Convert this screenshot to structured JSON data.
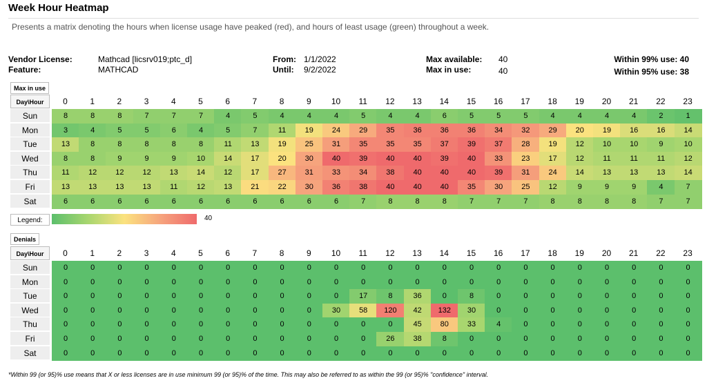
{
  "header": {
    "title": "Week Hour Heatmap",
    "subtitle": "Presents a matrix denoting the hours when license usage have peaked (red), and hours of least usage (green) throughout a week."
  },
  "info": {
    "vendor_label": "Vendor License:",
    "vendor_value": "Mathcad [licsrv019;ptc_d]",
    "feature_label": "Feature:",
    "feature_value": "MATHCAD",
    "from_label": "From:",
    "from_value": "1/1/2022",
    "until_label": "Until:",
    "until_value": "9/2/2022",
    "max_avail_label": "Max available:",
    "max_avail_value": "40",
    "max_use_label": "Max in use:",
    "max_use_value": "40",
    "within99": "Within 99% use: 40",
    "within95": "Within 95% use: 38"
  },
  "legend": {
    "label": "Legend:",
    "max": "40"
  },
  "footnote": "*Within 99 (or 95)% use means that  X or less licenses are in use minimum 99 (or 95)% of the time. This may also be referred to as within the 99 (or 95)% \"confidence\" interval.",
  "chart_data": [
    {
      "type": "heatmap",
      "title": "Max in use",
      "corner_label": "Day\\Hour",
      "x": [
        "0",
        "1",
        "2",
        "3",
        "4",
        "5",
        "6",
        "7",
        "8",
        "9",
        "10",
        "11",
        "12",
        "13",
        "14",
        "15",
        "16",
        "17",
        "18",
        "19",
        "20",
        "21",
        "22",
        "23"
      ],
      "y": [
        "Sun",
        "Mon",
        "Tue",
        "Wed",
        "Thu",
        "Fri",
        "Sat"
      ],
      "values": [
        [
          8,
          8,
          8,
          7,
          7,
          7,
          4,
          5,
          4,
          4,
          4,
          5,
          4,
          4,
          6,
          5,
          5,
          5,
          4,
          4,
          4,
          4,
          2,
          1
        ],
        [
          3,
          4,
          5,
          5,
          6,
          4,
          5,
          7,
          11,
          19,
          24,
          29,
          35,
          36,
          36,
          36,
          34,
          32,
          29,
          20,
          19,
          16,
          16,
          14
        ],
        [
          13,
          8,
          8,
          8,
          8,
          8,
          11,
          13,
          19,
          25,
          31,
          35,
          35,
          35,
          37,
          39,
          37,
          28,
          19,
          12,
          10,
          10,
          9,
          10
        ],
        [
          8,
          8,
          9,
          9,
          9,
          10,
          14,
          17,
          20,
          30,
          40,
          39,
          40,
          40,
          39,
          40,
          33,
          23,
          17,
          12,
          11,
          11,
          11,
          12
        ],
        [
          11,
          12,
          12,
          12,
          13,
          14,
          12,
          17,
          27,
          31,
          33,
          34,
          38,
          40,
          40,
          40,
          39,
          31,
          24,
          14,
          13,
          13,
          13,
          14
        ],
        [
          13,
          13,
          13,
          13,
          11,
          12,
          13,
          21,
          22,
          30,
          36,
          38,
          40,
          40,
          40,
          35,
          30,
          25,
          12,
          9,
          9,
          9,
          4,
          7
        ],
        [
          6,
          6,
          6,
          6,
          6,
          6,
          6,
          6,
          6,
          6,
          6,
          7,
          8,
          8,
          8,
          7,
          7,
          7,
          8,
          8,
          8,
          8,
          7,
          7
        ]
      ],
      "scale_max": 40
    },
    {
      "type": "heatmap",
      "title": "Denials",
      "corner_label": "Day\\Hour",
      "x": [
        "0",
        "1",
        "2",
        "3",
        "4",
        "5",
        "6",
        "7",
        "8",
        "9",
        "10",
        "11",
        "12",
        "13",
        "14",
        "15",
        "16",
        "17",
        "18",
        "19",
        "20",
        "21",
        "22",
        "23"
      ],
      "y": [
        "Sun",
        "Mon",
        "Tue",
        "Wed",
        "Thu",
        "Fri",
        "Sat"
      ],
      "values": [
        [
          0,
          0,
          0,
          0,
          0,
          0,
          0,
          0,
          0,
          0,
          0,
          0,
          0,
          0,
          0,
          0,
          0,
          0,
          0,
          0,
          0,
          0,
          0,
          0
        ],
        [
          0,
          0,
          0,
          0,
          0,
          0,
          0,
          0,
          0,
          0,
          0,
          0,
          0,
          0,
          0,
          0,
          0,
          0,
          0,
          0,
          0,
          0,
          0,
          0
        ],
        [
          0,
          0,
          0,
          0,
          0,
          0,
          0,
          0,
          0,
          0,
          0,
          17,
          8,
          36,
          0,
          8,
          0,
          0,
          0,
          0,
          0,
          0,
          0,
          0
        ],
        [
          0,
          0,
          0,
          0,
          0,
          0,
          0,
          0,
          0,
          0,
          30,
          58,
          120,
          42,
          132,
          30,
          0,
          0,
          0,
          0,
          0,
          0,
          0,
          0
        ],
        [
          0,
          0,
          0,
          0,
          0,
          0,
          0,
          0,
          0,
          0,
          0,
          0,
          0,
          45,
          80,
          33,
          4,
          0,
          0,
          0,
          0,
          0,
          0,
          0
        ],
        [
          0,
          0,
          0,
          0,
          0,
          0,
          0,
          0,
          0,
          0,
          0,
          0,
          26,
          38,
          8,
          0,
          0,
          0,
          0,
          0,
          0,
          0,
          0,
          0
        ],
        [
          0,
          0,
          0,
          0,
          0,
          0,
          0,
          0,
          0,
          0,
          0,
          0,
          0,
          0,
          0,
          0,
          0,
          0,
          0,
          0,
          0,
          0,
          0,
          0
        ]
      ],
      "scale_max": 132
    }
  ]
}
